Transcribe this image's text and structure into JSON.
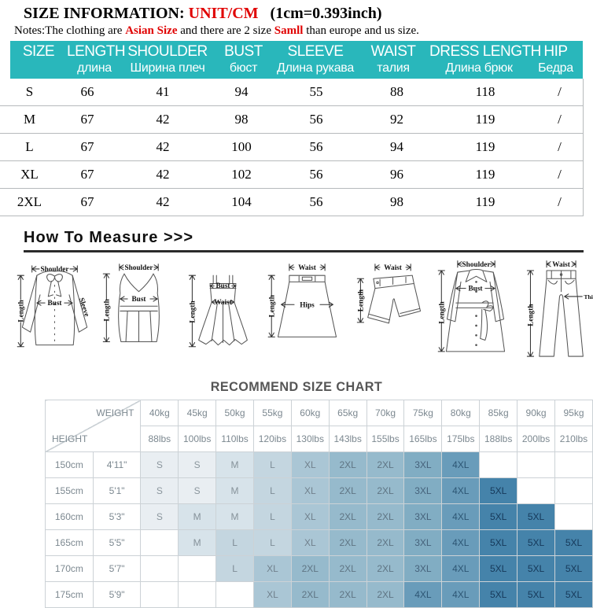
{
  "colors": {
    "teal": "#29b7bb",
    "red": "#e00000"
  },
  "title": {
    "prefix": "SIZE INFORMATION:",
    "unit": "UNIT/CM",
    "suffix": "(1cm=0.393inch)"
  },
  "notes": {
    "p1": "Notes:The clothing are ",
    "r1": "Asian Size",
    "p2": " and there are 2 size ",
    "r2": "Samll",
    "p3": " than europe and us size."
  },
  "size_table": {
    "columns": [
      {
        "en": "SIZE",
        "ru": ""
      },
      {
        "en": "LENGTH",
        "ru": "длина"
      },
      {
        "en": "SHOULDER",
        "ru": "Ширина плеч"
      },
      {
        "en": "BUST",
        "ru": "бюст"
      },
      {
        "en": "SLEEVE",
        "ru": "Длина рукава"
      },
      {
        "en": "WAIST",
        "ru": "талия"
      },
      {
        "en": "DRESS LENGTH",
        "ru": "Длина брюк"
      },
      {
        "en": "HIP",
        "ru": "Бедра"
      }
    ],
    "rows": [
      [
        "S",
        "66",
        "41",
        "94",
        "55",
        "88",
        "118",
        "/"
      ],
      [
        "M",
        "67",
        "42",
        "98",
        "56",
        "92",
        "119",
        "/"
      ],
      [
        "L",
        "67",
        "42",
        "100",
        "56",
        "94",
        "119",
        "/"
      ],
      [
        "XL",
        "67",
        "42",
        "102",
        "56",
        "96",
        "119",
        "/"
      ],
      [
        "2XL",
        "67",
        "42",
        "104",
        "56",
        "98",
        "119",
        "/"
      ]
    ]
  },
  "measure": {
    "title": "How To Measure",
    "arrows": ">>>",
    "garments": [
      {
        "name": "blouse",
        "labels": {
          "shoulder": "Shoulder",
          "length": "Length",
          "bust": "Bust",
          "sleeve": "Sleeve"
        }
      },
      {
        "name": "top",
        "labels": {
          "shoulder": "Shoulder",
          "length": "Length",
          "bust": "Bust"
        }
      },
      {
        "name": "dress",
        "labels": {
          "length": "Length",
          "bust": "Bust",
          "waist": "Waist"
        }
      },
      {
        "name": "skirt",
        "labels": {
          "waist": "Waist",
          "hips": "Hips",
          "length": "Length"
        }
      },
      {
        "name": "shorts",
        "labels": {
          "waist": "Waist",
          "length": "Length"
        }
      },
      {
        "name": "coat",
        "labels": {
          "shoulder": "Shoulder",
          "bust": "Bust",
          "length": "Length"
        }
      },
      {
        "name": "pants",
        "labels": {
          "waist": "Waist",
          "thigh": "Thigh",
          "length": "Length"
        }
      }
    ]
  },
  "recommend": {
    "title": "RECOMMEND SIZE CHART",
    "weight_label": "WEIGHT",
    "height_label": "HEIGHT",
    "weights_kg": [
      "40kg",
      "45kg",
      "50kg",
      "55kg",
      "60kg",
      "65kg",
      "70kg",
      "75kg",
      "80kg",
      "85kg",
      "90kg",
      "95kg"
    ],
    "weights_lbs": [
      "88lbs",
      "100lbs",
      "110lbs",
      "120ibs",
      "130lbs",
      "143lbs",
      "155lbs",
      "165lbs",
      "175lbs",
      "188lbs",
      "200lbs",
      "210lbs"
    ],
    "rows": [
      {
        "cm": "150cm",
        "ft": "4'11\"",
        "cells": [
          "S",
          "S",
          "M",
          "L",
          "XL",
          "2XL",
          "2XL",
          "3XL",
          "4XL",
          "",
          "",
          ""
        ]
      },
      {
        "cm": "155cm",
        "ft": "5'1\"",
        "cells": [
          "S",
          "S",
          "M",
          "L",
          "XL",
          "2XL",
          "2XL",
          "3XL",
          "4XL",
          "5XL",
          "",
          ""
        ]
      },
      {
        "cm": "160cm",
        "ft": "5'3\"",
        "cells": [
          "S",
          "M",
          "M",
          "L",
          "XL",
          "2XL",
          "2XL",
          "3XL",
          "4XL",
          "5XL",
          "5XL",
          ""
        ]
      },
      {
        "cm": "165cm",
        "ft": "5'5\"",
        "cells": [
          "",
          "M",
          "L",
          "L",
          "XL",
          "2XL",
          "2XL",
          "3XL",
          "4XL",
          "5XL",
          "5XL",
          "5XL"
        ]
      },
      {
        "cm": "170cm",
        "ft": "5'7\"",
        "cells": [
          "",
          "",
          "L",
          "XL",
          "2XL",
          "2XL",
          "2XL",
          "3XL",
          "4XL",
          "5XL",
          "5XL",
          "5XL"
        ]
      },
      {
        "cm": "175cm",
        "ft": "5'9\"",
        "cells": [
          "",
          "",
          "",
          "XL",
          "2XL",
          "2XL",
          "2XL",
          "4XL",
          "4XL",
          "5XL",
          "5XL",
          "5XL"
        ]
      }
    ],
    "palette": {
      "S": {
        "bg": "#e9eef2",
        "fg": "#8b969d"
      },
      "M": {
        "bg": "#d7e3ea",
        "fg": "#86929a"
      },
      "L": {
        "bg": "#c4d6e0",
        "fg": "#7e8c96"
      },
      "XL": {
        "bg": "#aac6d5",
        "fg": "#71818d"
      },
      "2XL": {
        "bg": "#96bacc",
        "fg": "#5f7584"
      },
      "3XL": {
        "bg": "#81adc3",
        "fg": "#46627b"
      },
      "4XL": {
        "bg": "#699cba",
        "fg": "#2d5674"
      },
      "5XL": {
        "bg": "#4583aa",
        "fg": "#16395a"
      }
    }
  }
}
